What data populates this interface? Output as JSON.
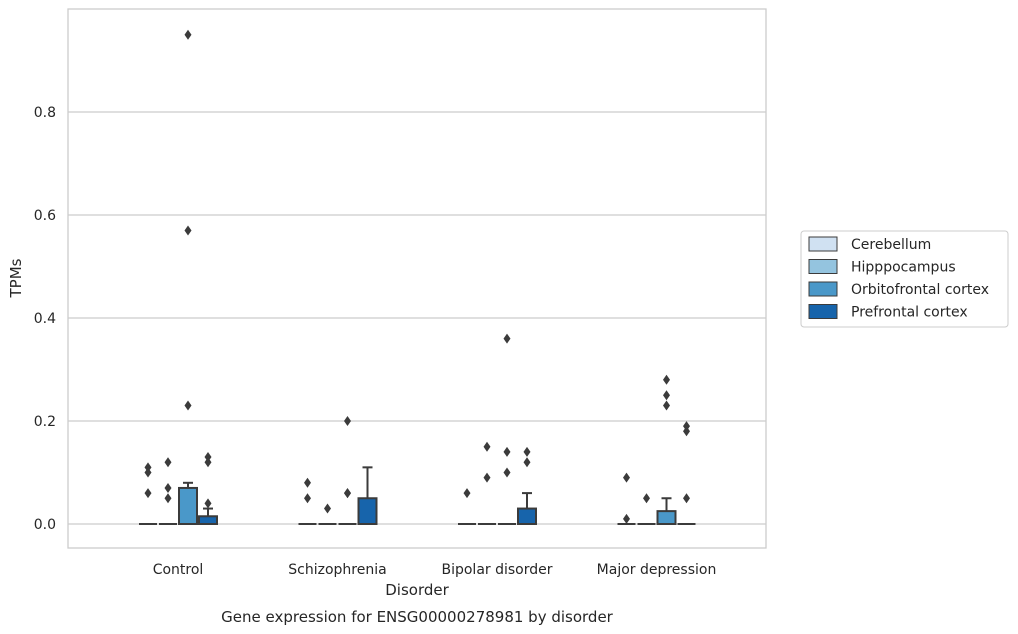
{
  "chart_data": {
    "type": "box",
    "xlabel": "Disorder",
    "ylabel": "TPMs",
    "caption": "Gene expression for ENSG00000278981 by disorder",
    "categories": [
      "Control",
      "Schizophrenia",
      "Bipolar disorder",
      "Major depression"
    ],
    "ylim": [
      -0.045,
      0.995
    ],
    "yticks": [
      0.0,
      0.2,
      0.4,
      0.6,
      0.8
    ],
    "ytick_labels": [
      "0.0",
      "0.2",
      "0.4",
      "0.6",
      "0.8"
    ],
    "grid": "horizontal",
    "legend_position": "right",
    "series": [
      {
        "name": "Cerebellum",
        "color": "#d0e1f2",
        "boxes": [
          {
            "q1": 0,
            "median": 0,
            "q3": 0,
            "whisker_low": 0,
            "whisker_high": 0,
            "outliers": [
              0.06,
              0.1,
              0.11
            ]
          },
          {
            "q1": 0,
            "median": 0,
            "q3": 0,
            "whisker_low": 0,
            "whisker_high": 0,
            "outliers": [
              0.05,
              0.08
            ]
          },
          {
            "q1": 0,
            "median": 0,
            "q3": 0,
            "whisker_low": 0,
            "whisker_high": 0,
            "outliers": [
              0.06
            ]
          },
          {
            "q1": 0,
            "median": 0,
            "q3": 0,
            "whisker_low": 0,
            "whisker_high": 0,
            "outliers": [
              0.01,
              0.09
            ]
          }
        ]
      },
      {
        "name": "Hipppocampus",
        "color": "#94c4df",
        "boxes": [
          {
            "q1": 0,
            "median": 0,
            "q3": 0,
            "whisker_low": 0,
            "whisker_high": 0,
            "outliers": [
              0.05,
              0.07,
              0.12
            ]
          },
          {
            "q1": 0,
            "median": 0,
            "q3": 0,
            "whisker_low": 0,
            "whisker_high": 0,
            "outliers": [
              0.03
            ]
          },
          {
            "q1": 0,
            "median": 0,
            "q3": 0,
            "whisker_low": 0,
            "whisker_high": 0,
            "outliers": [
              0.09,
              0.15
            ]
          },
          {
            "q1": 0,
            "median": 0,
            "q3": 0,
            "whisker_low": 0,
            "whisker_high": 0,
            "outliers": [
              0.05
            ]
          }
        ]
      },
      {
        "name": "Orbitofrontal cortex",
        "color": "#4a98c9",
        "boxes": [
          {
            "q1": 0,
            "median": 0,
            "q3": 0.07,
            "whisker_low": 0,
            "whisker_high": 0.08,
            "outliers": [
              0.23,
              0.57,
              0.95
            ]
          },
          {
            "q1": 0,
            "median": 0,
            "q3": 0,
            "whisker_low": 0,
            "whisker_high": 0,
            "outliers": [
              0.06,
              0.06,
              0.2
            ]
          },
          {
            "q1": 0,
            "median": 0,
            "q3": 0,
            "whisker_low": 0,
            "whisker_high": 0,
            "outliers": [
              0.1,
              0.14,
              0.36
            ]
          },
          {
            "q1": 0,
            "median": 0,
            "q3": 0.025,
            "whisker_low": 0,
            "whisker_high": 0.05,
            "outliers": [
              0.23,
              0.25,
              0.28
            ]
          }
        ]
      },
      {
        "name": "Prefrontal cortex",
        "color": "#1764ab",
        "boxes": [
          {
            "q1": 0,
            "median": 0,
            "q3": 0.015,
            "whisker_low": 0,
            "whisker_high": 0.03,
            "outliers": [
              0.04,
              0.12,
              0.13
            ]
          },
          {
            "q1": 0,
            "median": 0,
            "q3": 0.05,
            "whisker_low": 0,
            "whisker_high": 0.11,
            "outliers": []
          },
          {
            "q1": 0,
            "median": 0,
            "q3": 0.03,
            "whisker_low": 0,
            "whisker_high": 0.06,
            "outliers": [
              0.12,
              0.14
            ]
          },
          {
            "q1": 0,
            "median": 0,
            "q3": 0,
            "whisker_low": 0,
            "whisker_high": 0,
            "outliers": [
              0.05,
              0.18,
              0.19
            ]
          }
        ]
      }
    ]
  }
}
